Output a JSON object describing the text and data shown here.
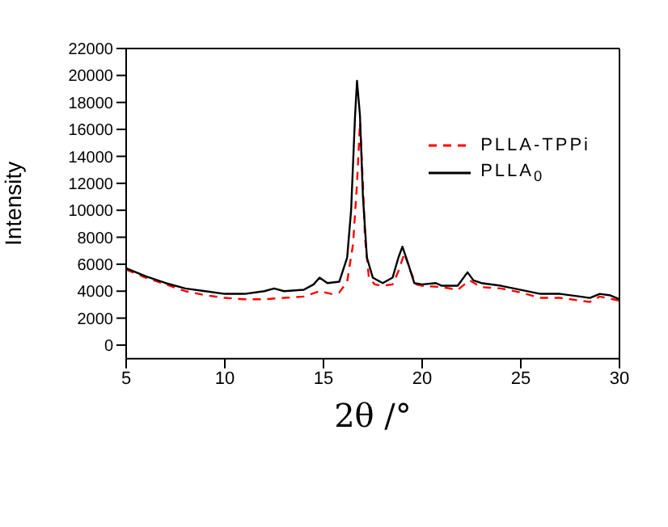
{
  "chart_data": {
    "type": "line",
    "xlabel": "2θ /°",
    "ylabel": "Intensity",
    "xlim": [
      5,
      30
    ],
    "xticks": [
      5,
      10,
      15,
      20,
      25,
      30
    ],
    "ylim": [
      -1000,
      22000
    ],
    "yticks": [
      0,
      2000,
      4000,
      6000,
      8000,
      10000,
      12000,
      14000,
      16000,
      18000,
      20000,
      22000
    ],
    "legend": "top right",
    "marker": "none",
    "series": [
      {
        "name": "PLLA-TPPi",
        "color": "#ff0000",
        "line_style": "dashed",
        "x": [
          5,
          6,
          7,
          8,
          9,
          10,
          11,
          12,
          13,
          14,
          14.8,
          15.4,
          15.8,
          16.2,
          16.5,
          16.7,
          16.85,
          17,
          17.1,
          17.3,
          17.6,
          18,
          18.5,
          18.8,
          19.1,
          19.4,
          19.7,
          20,
          21,
          21.8,
          22.4,
          23,
          24,
          25,
          26,
          27,
          28,
          28.5,
          29,
          30
        ],
        "values": [
          5600,
          5000,
          4500,
          4000,
          3700,
          3500,
          3400,
          3400,
          3500,
          3600,
          4000,
          3800,
          3900,
          4700,
          7500,
          12000,
          16500,
          12000,
          8000,
          5000,
          4500,
          4400,
          4500,
          5500,
          6800,
          5500,
          4500,
          4400,
          4300,
          4100,
          4800,
          4300,
          4200,
          3900,
          3500,
          3500,
          3300,
          3200,
          3600,
          3300
        ]
      },
      {
        "name": "PLLA$_{0}$",
        "color": "#000000",
        "line_style": "solid",
        "x": [
          5,
          6,
          7,
          8,
          9,
          10,
          11,
          12,
          12.5,
          13,
          14,
          14.5,
          14.8,
          15.2,
          15.8,
          16.2,
          16.4,
          16.6,
          16.7,
          16.85,
          17,
          17.2,
          17.5,
          18,
          18.5,
          18.8,
          19,
          19.3,
          19.6,
          20,
          20.7,
          21,
          21.8,
          22.3,
          22.6,
          23,
          24,
          25,
          26,
          27,
          28,
          28.5,
          29,
          29.5,
          30
        ],
        "values": [
          5700,
          5100,
          4600,
          4200,
          4000,
          3800,
          3800,
          4000,
          4200,
          4000,
          4100,
          4500,
          5000,
          4600,
          4700,
          6500,
          10000,
          17000,
          19600,
          17000,
          11000,
          6500,
          5000,
          4600,
          5000,
          6500,
          7300,
          6000,
          4600,
          4500,
          4600,
          4400,
          4400,
          5400,
          4800,
          4600,
          4400,
          4100,
          3800,
          3800,
          3600,
          3500,
          3800,
          3700,
          3400
        ]
      }
    ]
  }
}
